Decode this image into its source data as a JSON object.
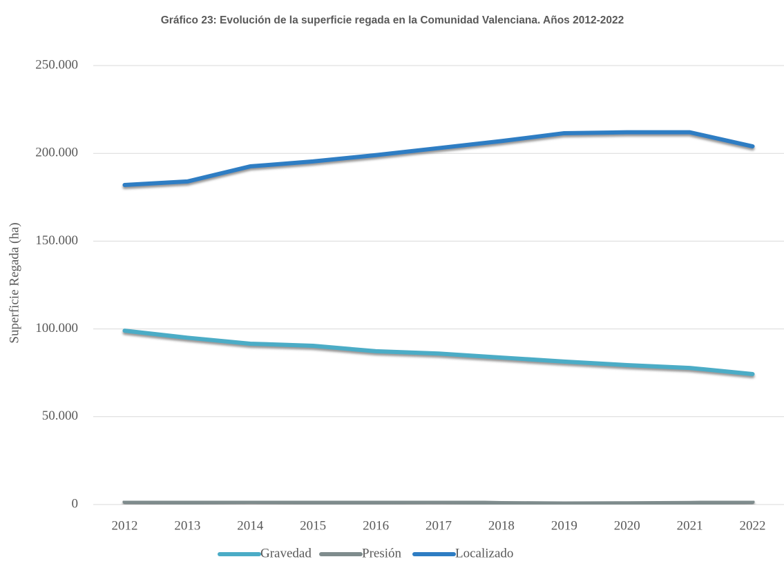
{
  "chart_data": {
    "type": "line",
    "title": "Gráfico 23: Evolución de la superficie regada en la Comunidad Valenciana. Años 2012-2022",
    "y_label": "Superficie Regada (ha)",
    "categories": [
      "2012",
      "2013",
      "2014",
      "2015",
      "2016",
      "2017",
      "2018",
      "2019",
      "2020",
      "2021",
      "2022"
    ],
    "series": [
      {
        "name": "Gravedad",
        "color": "#4bacc6",
        "values": [
          99000,
          95000,
          91600,
          90400,
          87300,
          86000,
          83700,
          81400,
          79400,
          77800,
          74300
        ]
      },
      {
        "name": "Presión",
        "color": "#7f8c8d",
        "values": [
          1500,
          1200,
          1600,
          1300,
          1300,
          1500,
          800,
          600,
          700,
          900,
          1500
        ]
      },
      {
        "name": "Localizado",
        "color": "#2e7dc3",
        "values": [
          182000,
          184000,
          192600,
          195400,
          199000,
          203000,
          207000,
          211500,
          212000,
          212000,
          204000
        ]
      }
    ],
    "ylim": [
      0,
      250000
    ],
    "yticks": [
      0,
      {
        "value": 50000,
        "label": "50.000"
      },
      {
        "value": 100000,
        "label": "100.000"
      },
      {
        "value": 150000,
        "label": "150.000"
      },
      {
        "value": 200000,
        "label": "200.000"
      },
      {
        "value": 250000,
        "label": "250.000"
      }
    ],
    "grid": true,
    "legend": "bottom"
  }
}
